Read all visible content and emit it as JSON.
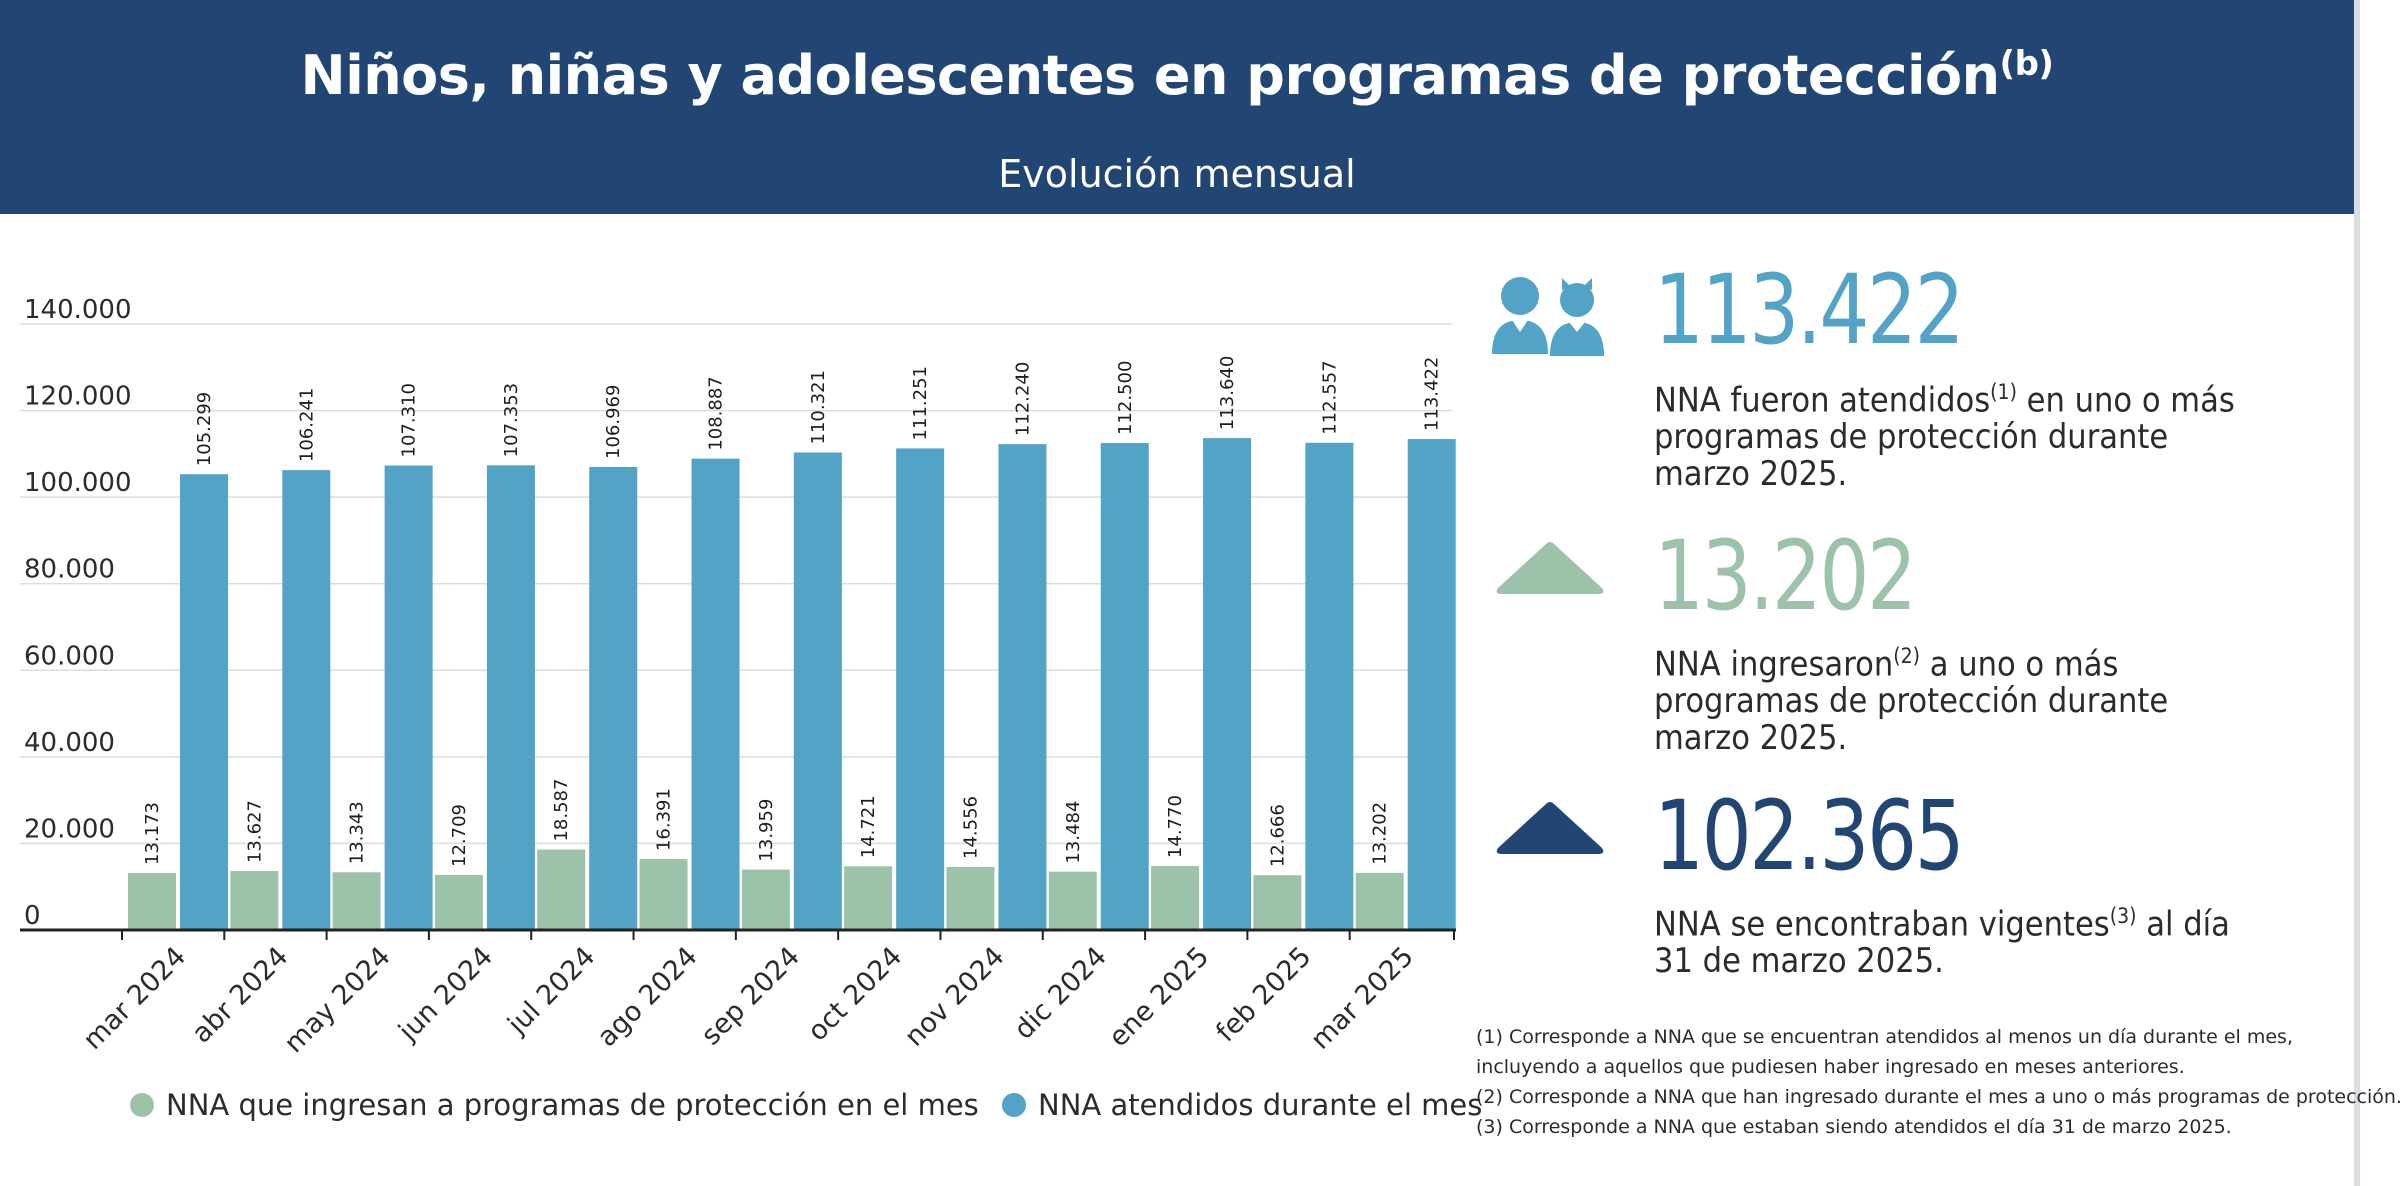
{
  "header": {
    "title": "Niños, niñas y adolescentes en programas de protección",
    "title_sup": "(b)",
    "subtitle": "Evolución mensual"
  },
  "colors": {
    "header_bg": "#214674",
    "ingresan": "#9cc3aa",
    "atendidos": "#52a3c6",
    "vigentes": "#214674"
  },
  "chart_data": {
    "type": "bar",
    "categories": [
      "mar 2024",
      "abr 2024",
      "may 2024",
      "jun 2024",
      "jul 2024",
      "ago 2024",
      "sep 2024",
      "oct 2024",
      "nov 2024",
      "dic 2024",
      "ene 2025",
      "feb 2025",
      "mar 2025"
    ],
    "series": [
      {
        "name": "NNA que ingresan a programas de protección en el mes",
        "color": "#9cc3aa",
        "values": [
          13173,
          13627,
          13343,
          12709,
          18587,
          16391,
          13959,
          14721,
          14556,
          13484,
          14770,
          12666,
          13202
        ],
        "labels": [
          "13.173",
          "13.627",
          "13.343",
          "12.709",
          "18.587",
          "16.391",
          "13.959",
          "14.721",
          "14.556",
          "13.484",
          "14.770",
          "12.666",
          "13.202"
        ]
      },
      {
        "name": "NNA atendidos durante el mes",
        "color": "#52a3c6",
        "values": [
          105299,
          106241,
          107310,
          107353,
          106969,
          108887,
          110321,
          111251,
          112240,
          112500,
          113640,
          112557,
          113422
        ],
        "labels": [
          "105.299",
          "106.241",
          "107.310",
          "107.353",
          "106.969",
          "108.887",
          "110.321",
          "111.251",
          "112.240",
          "112.500",
          "113.640",
          "112.557",
          "113.422"
        ]
      }
    ],
    "ylim": [
      0,
      140000
    ],
    "yticks": [
      0,
      20000,
      40000,
      60000,
      80000,
      100000,
      120000,
      140000
    ],
    "ytick_labels": [
      "0",
      "20.000",
      "40.000",
      "60.000",
      "80.000",
      "100.000",
      "120.000",
      "140.000"
    ],
    "grid": true,
    "legend_position": "bottom"
  },
  "kpis": {
    "atendidos": {
      "number": "113.422",
      "desc_part1": "NNA fueron atendidos",
      "desc_sup": "(1)",
      "desc_part2": " en uno o más programas de protección durante marzo 2025.",
      "icon": "children-icon"
    },
    "ingresaron": {
      "number": "13.202",
      "desc_part1": "NNA ingresaron",
      "desc_sup": "(2)",
      "desc_part2": " a uno o más programas de protección durante marzo 2025.",
      "icon": "triangle-up-icon"
    },
    "vigentes": {
      "number": "102.365",
      "desc_part1": "NNA se encontraban vigentes",
      "desc_sup": "(3)",
      "desc_part2": " al día 31 de marzo 2025.",
      "icon": "triangle-up-icon"
    }
  },
  "notes": [
    "(1) Corresponde a NNA que se encuentran atendidos al menos un día durante el mes,",
    "incluyendo a aquellos que pudiesen haber ingresado en meses anteriores.",
    "(2) Corresponde a NNA que han ingresado durante el mes a uno o más programas de protección.",
    "(3) Corresponde a NNA que estaban siendo atendidos el día 31 de marzo 2025."
  ]
}
